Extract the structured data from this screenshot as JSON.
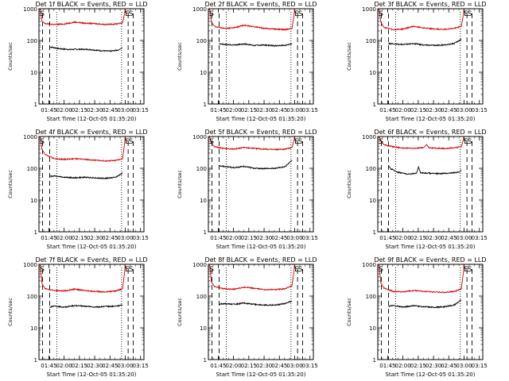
{
  "figure": {
    "background": "#ffffff"
  },
  "colors": {
    "events": "#000000",
    "lld": "#d40000",
    "axes": "#000000"
  },
  "chart_data": [
    {
      "type": "line",
      "title": "Det 1f BLACK = Events, RED = LLD",
      "xlabel": "Start Time (12-Oct-05 01:35:20)",
      "ylabel": "Counts/sec",
      "yscale": "log",
      "ylim": [
        1,
        1000
      ],
      "y_ticks": [
        "1",
        "10",
        "100",
        "1000"
      ],
      "x_ticks": [
        "01:45",
        "02:00",
        "02:15",
        "02:30",
        "02:45",
        "03:00",
        "03:15"
      ],
      "xlim_minutes": [
        0,
        103
      ],
      "markers": [
        {
          "label": "S",
          "x": 1.0
        },
        {
          "label": "E",
          "x": 84.5
        },
        {
          "label": "S",
          "x": 88.0
        }
      ],
      "dashed_lines": [
        3.5,
        10.5,
        87.5,
        92.5
      ],
      "dotted_lines": [
        17.5,
        81.0
      ],
      "series": [
        {
          "name": "BLACK = Events",
          "color": "#000000",
          "x": [
            10.5,
            12,
            20,
            30,
            40,
            50,
            60,
            70,
            78,
            82
          ],
          "y": [
            60,
            62,
            55,
            52,
            53,
            52,
            48,
            46,
            50,
            60
          ]
        },
        {
          "name": "RED = LLD",
          "color": "#d40000",
          "x": [
            0,
            1.2,
            3,
            6,
            15,
            25,
            35,
            45,
            55,
            65,
            75,
            82,
            84,
            84.5
          ],
          "y": [
            1000,
            1000,
            400,
            340,
            320,
            330,
            380,
            350,
            340,
            320,
            330,
            360,
            700,
            1000
          ]
        }
      ]
    },
    {
      "type": "line",
      "title": "Det 2f BLACK = Events, RED = LLD",
      "xlabel": "Start Time (12-Oct-05 01:35:20)",
      "ylabel": "Counts/sec",
      "yscale": "log",
      "ylim": [
        1,
        1000
      ],
      "y_ticks": [
        "1",
        "10",
        "100",
        "1000"
      ],
      "x_ticks": [
        "01:45",
        "02:00",
        "02:15",
        "02:30",
        "02:45",
        "03:00",
        "03:15"
      ],
      "xlim_minutes": [
        0,
        103
      ],
      "markers": [
        {
          "label": "S",
          "x": 1.0
        },
        {
          "label": "E",
          "x": 84.5
        },
        {
          "label": "S",
          "x": 88.0
        }
      ],
      "dashed_lines": [
        3.5,
        10.5,
        87.5,
        92.5
      ],
      "dotted_lines": [
        17.5,
        81.0
      ],
      "series": [
        {
          "name": "BLACK = Events",
          "color": "#000000",
          "x": [
            10.5,
            15,
            25,
            35,
            45,
            55,
            65,
            75,
            82
          ],
          "y": [
            80,
            75,
            72,
            78,
            70,
            72,
            68,
            70,
            78
          ]
        },
        {
          "name": "RED = LLD",
          "color": "#d40000",
          "x": [
            0,
            1.2,
            3,
            6,
            15,
            25,
            35,
            45,
            55,
            65,
            75,
            82,
            84,
            84.5
          ],
          "y": [
            1000,
            1000,
            380,
            280,
            240,
            250,
            300,
            270,
            240,
            230,
            220,
            240,
            600,
            1000
          ]
        }
      ]
    },
    {
      "type": "line",
      "title": "Det 3f BLACK = Events, RED = LLD",
      "xlabel": "Start Time (12-Oct-05 01:35:20)",
      "ylabel": "Counts/sec",
      "yscale": "log",
      "ylim": [
        1,
        1000
      ],
      "y_ticks": [
        "1",
        "10",
        "100",
        "1000"
      ],
      "x_ticks": [
        "01:45",
        "02:00",
        "02:15",
        "02:30",
        "02:45",
        "03:00",
        "03:15"
      ],
      "xlim_minutes": [
        0,
        103
      ],
      "markers": [
        {
          "label": "S",
          "x": 1.0
        },
        {
          "label": "E",
          "x": 84.5
        },
        {
          "label": "S",
          "x": 88.0
        }
      ],
      "dashed_lines": [
        3.5,
        10.5,
        87.5,
        92.5
      ],
      "dotted_lines": [
        17.5,
        81.0
      ],
      "series": [
        {
          "name": "BLACK = Events",
          "color": "#000000",
          "x": [
            10.5,
            15,
            25,
            35,
            45,
            55,
            65,
            75,
            82
          ],
          "y": [
            80,
            78,
            75,
            80,
            72,
            70,
            72,
            80,
            110
          ]
        },
        {
          "name": "RED = LLD",
          "color": "#d40000",
          "x": [
            0,
            1.2,
            3,
            6,
            15,
            25,
            35,
            45,
            55,
            65,
            75,
            82,
            84,
            84.5
          ],
          "y": [
            1000,
            1000,
            380,
            260,
            220,
            230,
            280,
            250,
            230,
            225,
            240,
            280,
            650,
            1000
          ]
        }
      ]
    },
    {
      "type": "line",
      "title": "Det 4f BLACK = Events, RED = LLD",
      "xlabel": "Start Time (12-Oct-05 01:35:20)",
      "ylabel": "Counts/sec",
      "yscale": "log",
      "ylim": [
        1,
        1000
      ],
      "y_ticks": [
        "1",
        "10",
        "100",
        "1000"
      ],
      "x_ticks": [
        "01:45",
        "02:00",
        "02:15",
        "02:30",
        "02:45",
        "03:00",
        "03:15"
      ],
      "xlim_minutes": [
        0,
        103
      ],
      "markers": [
        {
          "label": "S",
          "x": 1.0
        },
        {
          "label": "E",
          "x": 84.5
        },
        {
          "label": "S",
          "x": 88.0
        }
      ],
      "dashed_lines": [
        3.5,
        10.5,
        87.5,
        92.5
      ],
      "dotted_lines": [
        17.5,
        81.0
      ],
      "series": [
        {
          "name": "BLACK = Events",
          "color": "#000000",
          "x": [
            10.5,
            15,
            25,
            35,
            45,
            55,
            65,
            75,
            82
          ],
          "y": [
            55,
            58,
            52,
            50,
            52,
            50,
            48,
            52,
            70
          ]
        },
        {
          "name": "RED = LLD",
          "color": "#d40000",
          "x": [
            0,
            1.2,
            3,
            6,
            15,
            25,
            35,
            45,
            55,
            65,
            75,
            82,
            84,
            84.5
          ],
          "y": [
            1000,
            1000,
            400,
            270,
            200,
            190,
            200,
            190,
            180,
            170,
            175,
            200,
            600,
            1000
          ]
        }
      ]
    },
    {
      "type": "line",
      "title": "Det 5f BLACK = Events, RED = LLD",
      "xlabel": "Start Time (12-Oct-05 01:35:20)",
      "ylabel": "Counts/sec",
      "yscale": "log",
      "ylim": [
        1,
        1000
      ],
      "y_ticks": [
        "1",
        "10",
        "100",
        "1000"
      ],
      "x_ticks": [
        "01:45",
        "02:00",
        "02:15",
        "02:30",
        "02:45",
        "03:00",
        "03:15"
      ],
      "xlim_minutes": [
        0,
        103
      ],
      "markers": [
        {
          "label": "S",
          "x": 1.0
        },
        {
          "label": "E",
          "x": 84.5
        },
        {
          "label": "S",
          "x": 88.0
        }
      ],
      "dashed_lines": [
        3.5,
        10.5,
        87.5,
        92.5
      ],
      "dotted_lines": [
        17.5,
        81.0
      ],
      "series": [
        {
          "name": "BLACK = Events",
          "color": "#000000",
          "x": [
            10.5,
            15,
            25,
            35,
            45,
            55,
            65,
            75,
            82
          ],
          "y": [
            120,
            115,
            105,
            115,
            100,
            98,
            100,
            110,
            180
          ]
        },
        {
          "name": "RED = LLD",
          "color": "#d40000",
          "x": [
            0,
            1.2,
            3,
            6,
            15,
            25,
            35,
            45,
            55,
            65,
            75,
            82,
            84,
            84.5
          ],
          "y": [
            1000,
            1000,
            600,
            480,
            420,
            400,
            450,
            420,
            400,
            390,
            400,
            450,
            750,
            1000
          ]
        }
      ]
    },
    {
      "type": "line",
      "title": "Det 6f BLACK = Events, RED = LLD",
      "xlabel": "Start Time (12-Oct-05 01:35:20)",
      "ylabel": "Counts/sec",
      "yscale": "log",
      "ylim": [
        1,
        1000
      ],
      "y_ticks": [
        "1",
        "10",
        "100",
        "1000"
      ],
      "x_ticks": [
        "01:45",
        "02:00",
        "02:15",
        "02:30",
        "02:45",
        "03:00",
        "03:15"
      ],
      "xlim_minutes": [
        0,
        103
      ],
      "markers": [
        {
          "label": "S",
          "x": 1.0
        },
        {
          "label": "E",
          "x": 84.5
        },
        {
          "label": "S",
          "x": 88.0
        }
      ],
      "dashed_lines": [
        3.5,
        10.5,
        87.5,
        92.5
      ],
      "dotted_lines": [
        17.5,
        81.0
      ],
      "series": [
        {
          "name": "BLACK = Events",
          "color": "#000000",
          "x": [
            10.5,
            13,
            20,
            30,
            38,
            40,
            42,
            50,
            60,
            70,
            80,
            82
          ],
          "y": [
            120,
            95,
            75,
            65,
            70,
            110,
            72,
            70,
            68,
            70,
            75,
            90
          ]
        },
        {
          "name": "RED = LLD",
          "color": "#d40000",
          "x": [
            0,
            1.2,
            3,
            6,
            15,
            25,
            35,
            45,
            48,
            50,
            55,
            65,
            75,
            82,
            84,
            84.5
          ],
          "y": [
            1000,
            1000,
            750,
            550,
            480,
            430,
            420,
            450,
            560,
            450,
            430,
            420,
            440,
            480,
            800,
            1000
          ]
        }
      ]
    },
    {
      "type": "line",
      "title": "Det 7f BLACK = Events, RED = LLD",
      "xlabel": "Start Time (12-Oct-05 01:35:20)",
      "ylabel": "Counts/sec",
      "yscale": "log",
      "ylim": [
        1,
        1000
      ],
      "y_ticks": [
        "1",
        "10",
        "100",
        "1000"
      ],
      "x_ticks": [
        "01:45",
        "02:00",
        "02:15",
        "02:30",
        "02:45",
        "03:00",
        "03:15"
      ],
      "xlim_minutes": [
        0,
        103
      ],
      "markers": [
        {
          "label": "S",
          "x": 1.0
        },
        {
          "label": "E",
          "x": 84.5
        },
        {
          "label": "S",
          "x": 88.0
        }
      ],
      "dashed_lines": [
        3.5,
        10.5,
        87.5,
        92.5
      ],
      "dotted_lines": [
        17.5,
        81.0
      ],
      "series": [
        {
          "name": "BLACK = Events",
          "color": "#000000",
          "x": [
            10.5,
            15,
            25,
            35,
            45,
            55,
            65,
            75,
            82
          ],
          "y": [
            45,
            48,
            45,
            50,
            48,
            45,
            47,
            48,
            52
          ]
        },
        {
          "name": "RED = LLD",
          "color": "#d40000",
          "x": [
            0,
            1.2,
            3,
            6,
            15,
            25,
            35,
            45,
            55,
            65,
            75,
            82,
            84,
            84.5
          ],
          "y": [
            1000,
            1000,
            250,
            170,
            150,
            145,
            165,
            150,
            140,
            135,
            145,
            170,
            550,
            1000
          ]
        }
      ]
    },
    {
      "type": "line",
      "title": "Det 8f BLACK = Events, RED = LLD",
      "xlabel": "Start Time (12-Oct-05 01:35:20)",
      "ylabel": "Counts/sec",
      "yscale": "log",
      "ylim": [
        1,
        1000
      ],
      "y_ticks": [
        "1",
        "10",
        "100",
        "1000"
      ],
      "x_ticks": [
        "01:45",
        "02:00",
        "02:15",
        "02:30",
        "02:45",
        "03:00",
        "03:15"
      ],
      "xlim_minutes": [
        0,
        103
      ],
      "markers": [
        {
          "label": "S",
          "x": 1.0
        },
        {
          "label": "E",
          "x": 84.5
        },
        {
          "label": "S",
          "x": 88.0
        }
      ],
      "dashed_lines": [
        3.5,
        10.5,
        87.5,
        92.5
      ],
      "dotted_lines": [
        17.5,
        81.0
      ],
      "series": [
        {
          "name": "BLACK = Events",
          "color": "#000000",
          "x": [
            10.5,
            15,
            25,
            35,
            45,
            55,
            65,
            75,
            82
          ],
          "y": [
            55,
            58,
            55,
            60,
            55,
            52,
            52,
            58,
            70
          ]
        },
        {
          "name": "RED = LLD",
          "color": "#d40000",
          "x": [
            0,
            1.2,
            3,
            6,
            15,
            25,
            35,
            45,
            55,
            65,
            75,
            82,
            84,
            84.5
          ],
          "y": [
            1000,
            1000,
            280,
            200,
            170,
            165,
            190,
            175,
            160,
            160,
            170,
            210,
            600,
            1000
          ]
        }
      ]
    },
    {
      "type": "line",
      "title": "Det 9f BLACK = Events, RED = LLD",
      "xlabel": "Start Time (12-Oct-05 01:35:20)",
      "ylabel": "Counts/sec",
      "yscale": "log",
      "ylim": [
        1,
        1000
      ],
      "y_ticks": [
        "1",
        "10",
        "100",
        "1000"
      ],
      "x_ticks": [
        "01:45",
        "02:00",
        "02:15",
        "02:30",
        "02:45",
        "03:00",
        "03:15"
      ],
      "xlim_minutes": [
        0,
        103
      ],
      "markers": [
        {
          "label": "S",
          "x": 1.0
        },
        {
          "label": "E",
          "x": 84.5
        },
        {
          "label": "S",
          "x": 88.0
        }
      ],
      "dashed_lines": [
        3.5,
        10.5,
        87.5,
        92.5
      ],
      "dotted_lines": [
        17.5,
        81.0
      ],
      "series": [
        {
          "name": "BLACK = Events",
          "color": "#000000",
          "x": [
            10.5,
            15,
            25,
            35,
            45,
            55,
            65,
            75,
            82
          ],
          "y": [
            48,
            50,
            45,
            50,
            46,
            44,
            46,
            52,
            75
          ]
        },
        {
          "name": "RED = LLD",
          "color": "#d40000",
          "x": [
            0,
            1.2,
            3,
            6,
            15,
            25,
            35,
            45,
            55,
            65,
            75,
            82,
            84,
            84.5
          ],
          "y": [
            1000,
            1000,
            260,
            180,
            140,
            135,
            150,
            140,
            135,
            130,
            140,
            170,
            550,
            1000
          ]
        }
      ]
    }
  ]
}
